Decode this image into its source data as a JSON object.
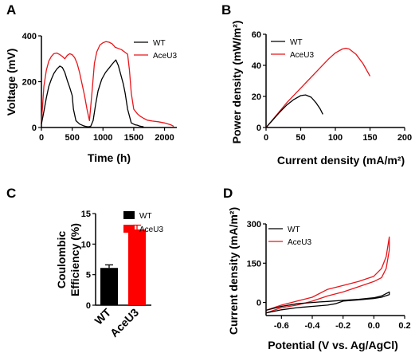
{
  "panels": {
    "A": {
      "letter": "A"
    },
    "B": {
      "letter": "B"
    },
    "C": {
      "letter": "C"
    },
    "D": {
      "letter": "D"
    }
  },
  "chart_data": [
    {
      "id": "A",
      "type": "line",
      "xlabel": "Time (h)",
      "ylabel": "Voltage (mV)",
      "xlim": [
        0,
        2200
      ],
      "ylim": [
        0,
        400
      ],
      "xticks": [
        "0",
        "500",
        "1000",
        "1500",
        "2000"
      ],
      "yticks": [
        "0",
        "200",
        "400"
      ],
      "legend_position": "top-right",
      "series": [
        {
          "name": "WT",
          "color": "#000000",
          "x": [
            0,
            40,
            80,
            120,
            160,
            200,
            250,
            300,
            340,
            380,
            420,
            460,
            500,
            520,
            560,
            620,
            680,
            720,
            760,
            800,
            840,
            880,
            920,
            980,
            1040,
            1100,
            1160,
            1210,
            1250,
            1290,
            1330,
            1360,
            1400,
            1460,
            1520,
            1560,
            1600,
            1660
          ],
          "y": [
            15,
            70,
            130,
            180,
            210,
            235,
            255,
            268,
            262,
            240,
            205,
            175,
            140,
            80,
            30,
            15,
            8,
            5,
            3,
            5,
            30,
            100,
            160,
            210,
            240,
            260,
            280,
            295,
            270,
            230,
            190,
            150,
            80,
            20,
            12,
            10,
            6,
            3
          ]
        },
        {
          "name": "AceU3",
          "color": "#e8161b",
          "x": [
            0,
            40,
            80,
            120,
            160,
            200,
            250,
            300,
            340,
            380,
            420,
            460,
            500,
            540,
            580,
            620,
            660,
            700,
            740,
            780,
            820,
            860,
            900,
            950,
            1000,
            1050,
            1100,
            1150,
            1200,
            1250,
            1300,
            1350,
            1400,
            1430,
            1460,
            1500,
            1560,
            1600,
            1660,
            1720,
            1800,
            1900,
            2000,
            2100,
            2150
          ],
          "y": [
            20,
            180,
            250,
            290,
            310,
            322,
            325,
            318,
            310,
            300,
            315,
            322,
            318,
            305,
            280,
            240,
            190,
            140,
            80,
            30,
            150,
            280,
            330,
            360,
            370,
            375,
            372,
            365,
            350,
            345,
            340,
            330,
            320,
            250,
            150,
            80,
            60,
            50,
            40,
            32,
            28,
            25,
            20,
            12,
            5
          ]
        }
      ]
    },
    {
      "id": "B",
      "type": "line",
      "xlabel": "Current density (mA/m²)",
      "ylabel": "Power density (mW/m²)",
      "xlim": [
        0,
        200
      ],
      "ylim": [
        0,
        60
      ],
      "xticks": [
        "0",
        "50",
        "100",
        "150",
        "200"
      ],
      "yticks": [
        "0",
        "20",
        "40",
        "60"
      ],
      "legend_position": "top-left",
      "series": [
        {
          "name": "WT",
          "color": "#000000",
          "x": [
            0,
            10,
            20,
            30,
            40,
            50,
            57,
            65,
            72,
            78,
            82
          ],
          "y": [
            0,
            5,
            10,
            14.5,
            18,
            20.5,
            21,
            19.5,
            16,
            12,
            8.5
          ]
        },
        {
          "name": "AceU3",
          "color": "#e8161b",
          "x": [
            0,
            15,
            30,
            45,
            60,
            75,
            90,
            100,
            110,
            115,
            120,
            130,
            140,
            150
          ],
          "y": [
            0,
            8,
            16,
            23,
            30,
            37,
            44,
            48,
            50.5,
            51,
            50.5,
            47,
            41,
            33
          ]
        }
      ]
    },
    {
      "id": "C",
      "type": "bar",
      "ylabel": "Coulombic Efficiency (%)",
      "categories": [
        "WT",
        "AceU3"
      ],
      "values": [
        6.1,
        12.4
      ],
      "errors": [
        0.5,
        0.7
      ],
      "colors": [
        "#000000",
        "#ff0000"
      ],
      "ylim": [
        0,
        15
      ],
      "yticks": [
        "0",
        "5",
        "10",
        "15"
      ],
      "legend_position": "top-right",
      "legend": [
        {
          "name": "WT",
          "color": "#000000"
        },
        {
          "name": "AceU3",
          "color": "#ff0000"
        }
      ]
    },
    {
      "id": "D",
      "type": "line",
      "xlabel": "Potential (V vs. Ag/AgCl)",
      "ylabel": "Current density (mA/m²)",
      "xlim": [
        -0.7,
        0.2
      ],
      "ylim": [
        -50,
        300
      ],
      "xticks": [
        "-0.6",
        "-0.4",
        "-0.2",
        "0.0",
        "0.2"
      ],
      "yticks": [
        "0",
        "150",
        "300"
      ],
      "legend_position": "top-left",
      "series": [
        {
          "name": "WT",
          "color": "#000000",
          "x": [
            -0.7,
            -0.6,
            -0.5,
            -0.4,
            -0.35,
            -0.3,
            -0.2,
            -0.1,
            0.0,
            0.05,
            0.1,
            0.1,
            0.05,
            0.0,
            -0.1,
            -0.2,
            -0.25,
            -0.3,
            -0.4,
            -0.5,
            -0.6,
            -0.7
          ],
          "y": [
            -30,
            -15,
            -5,
            0,
            2,
            4,
            8,
            12,
            18,
            25,
            40,
            30,
            20,
            15,
            10,
            5,
            -5,
            -10,
            -15,
            -20,
            -28,
            -40
          ]
        },
        {
          "name": "AceU3",
          "color": "#e8161b",
          "x": [
            -0.7,
            -0.6,
            -0.5,
            -0.4,
            -0.3,
            -0.2,
            -0.1,
            0.0,
            0.05,
            0.08,
            0.1,
            0.1,
            0.08,
            0.05,
            0.0,
            -0.1,
            -0.2,
            -0.3,
            -0.4,
            -0.5,
            -0.6,
            -0.7
          ],
          "y": [
            -30,
            -10,
            5,
            20,
            50,
            65,
            80,
            100,
            130,
            175,
            250,
            200,
            130,
            95,
            80,
            60,
            40,
            25,
            5,
            -10,
            -20,
            -40
          ]
        }
      ]
    }
  ]
}
